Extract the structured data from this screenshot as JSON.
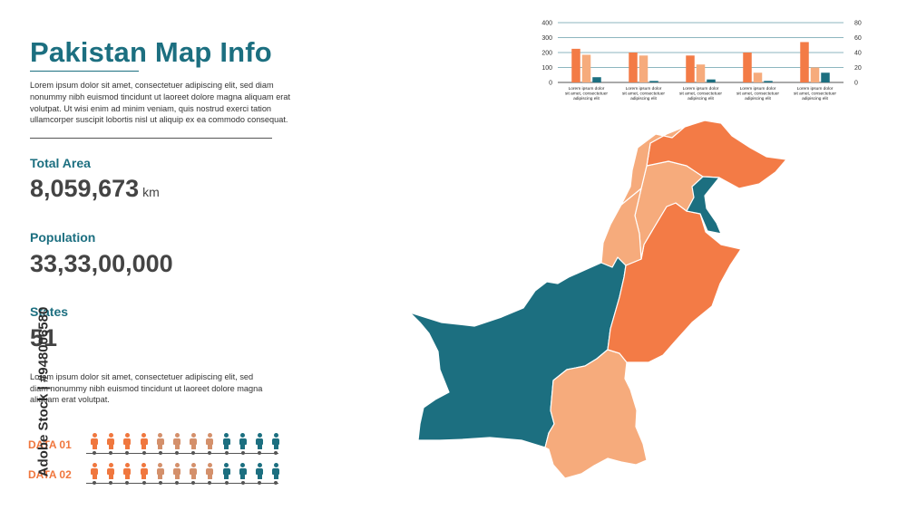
{
  "header": {
    "title": "Pakistan Map Info",
    "intro": "Lorem ipsum dolor sit amet, consectetuer adipiscing elit, sed diam nonummy nibh euismod tincidunt ut laoreet dolore magna aliquam erat volutpat. Ut wisi enim ad minim veniam, quis nostrud exerci tation ullamcorper suscipit lobortis nisl ut aliquip ex ea commodo consequat."
  },
  "stats": {
    "area_label": "Total Area",
    "area_value": "8,059,673",
    "area_unit": "km",
    "population_label": "Population",
    "population_value": "33,33,00,000",
    "states_label": "States",
    "states_value": "51"
  },
  "body_text": "Lorem ipsum dolor sit amet, consectetuer adipiscing elit, sed diam nonummy nibh euismod tincidunt ut laoreet dolore magna aliquam erat volutpat.",
  "data_rows": [
    {
      "label": "DATA 01",
      "colors": [
        "#f0773e",
        "#f0773e",
        "#f0773e",
        "#f0773e",
        "#d4906b",
        "#d4906b",
        "#d4906b",
        "#d4906b",
        "#1c6f80",
        "#1c6f80",
        "#1c6f80",
        "#1c6f80"
      ]
    },
    {
      "label": "DATA 02",
      "colors": [
        "#f0773e",
        "#f0773e",
        "#f0773e",
        "#f0773e",
        "#d4906b",
        "#d4906b",
        "#d4906b",
        "#d4906b",
        "#1c6f80",
        "#1c6f80",
        "#1c6f80",
        "#1c6f80"
      ]
    }
  ],
  "watermark": "Adobe Stock | #948006580",
  "colors": {
    "teal": "#1c6f80",
    "orange": "#f37b46",
    "light_orange": "#f6ab7c",
    "text": "#3a3a3a"
  },
  "chart_data": {
    "type": "bar",
    "categories": [
      "Lorem ipsum dolor sit amet, consectetuer adipiscing elit",
      "Lorem ipsum dolor sit amet, consectetuer adipiscing elit",
      "Lorem ipsum dolor sit amet, consectetuer adipiscing elit",
      "Lorem ipsum dolor sit amet, consectetuer adipiscing elit",
      "Lorem ipsum dolor sit amet, consectetuer adipiscing elit"
    ],
    "series": [
      {
        "values": [
          225,
          200,
          180,
          200,
          270
        ],
        "color": "#f37b46",
        "axis": "left"
      },
      {
        "values": [
          185,
          180,
          120,
          65,
          100
        ],
        "color": "#f6ab7c",
        "axis": "left"
      },
      {
        "values": [
          7,
          2,
          4,
          2,
          13
        ],
        "color": "#1c6f80",
        "axis": "right"
      }
    ],
    "left_ticks": [
      0,
      100,
      200,
      300,
      400
    ],
    "right_ticks": [
      0,
      20,
      40,
      60,
      80
    ],
    "ylim": [
      0,
      400
    ],
    "y2lim": [
      0,
      80
    ],
    "grid": true
  },
  "map": {
    "regions": [
      {
        "id": "balochistan",
        "color": "#1c6f80"
      },
      {
        "id": "punjab",
        "color": "#f37b46"
      },
      {
        "id": "sindh",
        "color": "#f6ab7c"
      },
      {
        "id": "khyber-pakhtunkhwa",
        "color": "#f6ab7c"
      },
      {
        "id": "fata",
        "color": "#f6ab7c"
      },
      {
        "id": "gilgit-baltistan",
        "color": "#f37b46"
      },
      {
        "id": "azad-kashmir",
        "color": "#1c6f80"
      },
      {
        "id": "islamabad",
        "color": "#f6ab7c"
      }
    ]
  }
}
